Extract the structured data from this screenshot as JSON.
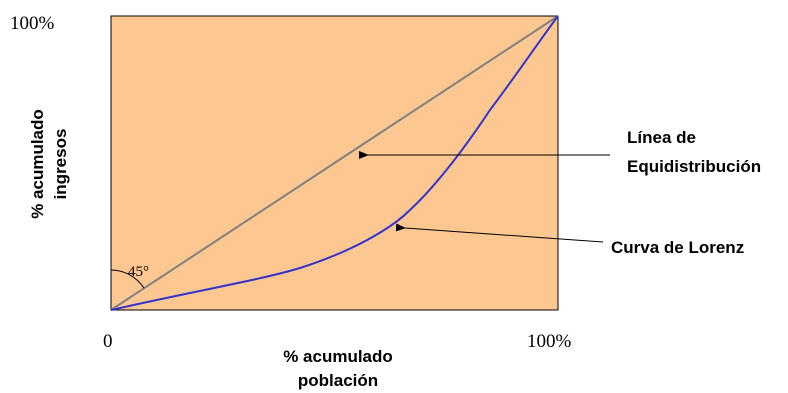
{
  "diagram": {
    "top_y_label": "100%",
    "origin_label": "0",
    "right_x_label": "100%",
    "angle_label": "45°",
    "y_axis_title": [
      "% acumulado",
      "ingresos"
    ],
    "x_axis_title": [
      "% acumulado",
      "población"
    ],
    "equality_line_label": [
      "Línea de",
      "Equidistribución"
    ],
    "lorenz_curve_label": "Curva de Lorenz",
    "colors": {
      "plot_background": "#fcc791",
      "equality_line": "#808080",
      "lorenz_curve": "#3333cc",
      "arrows": "#000000"
    }
  }
}
